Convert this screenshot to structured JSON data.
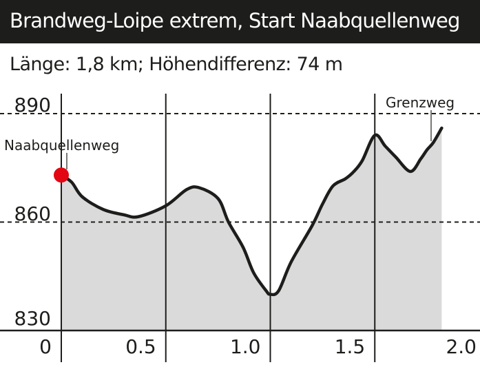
{
  "header": {
    "title": "Brandweg-Loipe extrem, Start Naabquellenweg"
  },
  "summary": {
    "text": "Länge: 1,8 km; Höhendifferenz: 74 m"
  },
  "colors": {
    "header_bg": "#1d1d1b",
    "fill": "#dadada",
    "line": "#1d1d1b",
    "start_marker": "#e30613"
  },
  "chart_data": {
    "type": "area",
    "title": "Brandweg-Loipe extrem, Start Naabquellenweg",
    "subtitle": "Länge: 1,8 km; Höhendifferenz: 74 m",
    "xlabel": "",
    "ylabel": "",
    "x_unit": "km",
    "y_unit": "m",
    "xlim": [
      0,
      2.0
    ],
    "ylim": [
      830,
      890
    ],
    "x_ticks": [
      "0",
      "0.5",
      "1.0",
      "1.5",
      "2.0"
    ],
    "y_ticks": [
      "830",
      "860",
      "890"
    ],
    "grid": {
      "vertical": "solid at 0, 0.5, 1.0, 1.5",
      "horizontal": "dashed at 860, 890"
    },
    "legend": null,
    "annotations": [
      {
        "label": "Naabquellenweg",
        "x": 0.0,
        "y": 873,
        "marker": "red-dot"
      },
      {
        "label": "Grenzweg",
        "x": 1.78,
        "y": 882
      }
    ],
    "x": [
      0.0,
      0.05,
      0.1,
      0.2,
      0.3,
      0.37,
      0.5,
      0.6,
      0.66,
      0.75,
      0.8,
      0.87,
      0.92,
      0.98,
      1.0,
      1.04,
      1.1,
      1.2,
      1.25,
      1.3,
      1.36,
      1.4,
      1.44,
      1.5,
      1.55,
      1.6,
      1.67,
      1.72,
      1.75,
      1.78,
      1.82
    ],
    "values": [
      873,
      871,
      867,
      863.5,
      862,
      861.5,
      864.5,
      869,
      869.5,
      866.5,
      860,
      853,
      846,
      841,
      840,
      841,
      849,
      859,
      865,
      870,
      872,
      874,
      877,
      884,
      881,
      878,
      874,
      877.5,
      880,
      882,
      886
    ]
  }
}
